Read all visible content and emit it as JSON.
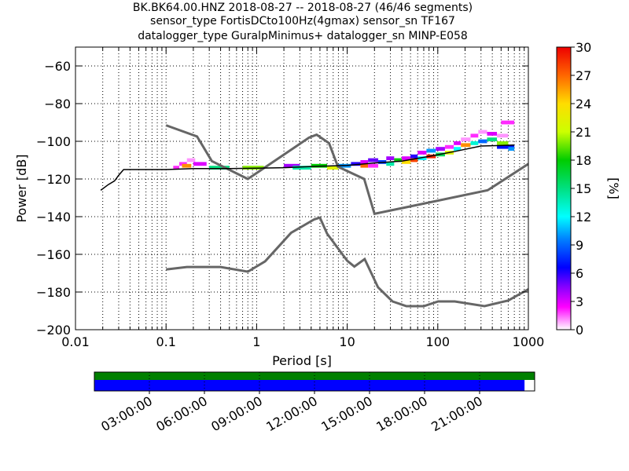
{
  "title": {
    "line1": "BK.BK64.00.HNZ   2018-08-27 -- 2018-08-27  (46/46 segments)",
    "line2": "sensor_type FortisDCto100Hz(4gmax) sensor_sn TF167",
    "line3": "datalogger_type GuralpMinimus+ datalogger_sn MINP-E058"
  },
  "chart_data": {
    "type": "heatmap",
    "xlabel": "Period [s]",
    "ylabel": "Power [dB]",
    "xscale": "log",
    "xlim": [
      0.01,
      1000
    ],
    "ylim": [
      -200,
      -50
    ],
    "x_ticks": [
      {
        "value": 0.01,
        "label": "0.01"
      },
      {
        "value": 0.1,
        "label": "0.1"
      },
      {
        "value": 1,
        "label": "1"
      },
      {
        "value": 10,
        "label": "10"
      },
      {
        "value": 100,
        "label": "100"
      },
      {
        "value": 1000,
        "label": "1000"
      }
    ],
    "y_ticks": [
      {
        "value": -60,
        "label": "−60"
      },
      {
        "value": -80,
        "label": "−80"
      },
      {
        "value": -100,
        "label": "−100"
      },
      {
        "value": -120,
        "label": "−120"
      },
      {
        "value": -140,
        "label": "−140"
      },
      {
        "value": -160,
        "label": "−160"
      },
      {
        "value": -180,
        "label": "−180"
      },
      {
        "value": -200,
        "label": "−200"
      }
    ],
    "grid": true,
    "colorbar": {
      "label": "[%]",
      "min": 0,
      "max": 30,
      "ticks": [
        {
          "value": 0,
          "label": "0"
        },
        {
          "value": 3,
          "label": "3"
        },
        {
          "value": 6,
          "label": "6"
        },
        {
          "value": 9,
          "label": "9"
        },
        {
          "value": 12,
          "label": "12"
        },
        {
          "value": 15,
          "label": "15"
        },
        {
          "value": 18,
          "label": "18"
        },
        {
          "value": 21,
          "label": "21"
        },
        {
          "value": 24,
          "label": "24"
        },
        {
          "value": 27,
          "label": "27"
        },
        {
          "value": 30,
          "label": "30"
        }
      ]
    },
    "high_noise_model": [
      [
        0.1,
        -91.5
      ],
      [
        0.22,
        -97.4
      ],
      [
        0.32,
        -110.5
      ],
      [
        0.8,
        -120
      ],
      [
        3.8,
        -98
      ],
      [
        4.6,
        -96.5
      ],
      [
        6.3,
        -101
      ],
      [
        7.9,
        -113.5
      ],
      [
        15.4,
        -120
      ],
      [
        20,
        -138.5
      ],
      [
        354.8,
        -126
      ],
      [
        1000,
        -112
      ]
    ],
    "low_noise_model": [
      [
        0.1,
        -168
      ],
      [
        0.17,
        -166.7
      ],
      [
        0.4,
        -166.7
      ],
      [
        0.8,
        -169.2
      ],
      [
        1.24,
        -163.7
      ],
      [
        2.4,
        -148.6
      ],
      [
        4.3,
        -141.5
      ],
      [
        5,
        -140.5
      ],
      [
        6,
        -149
      ],
      [
        10,
        -163.4
      ],
      [
        12,
        -166.5
      ],
      [
        15.6,
        -162.5
      ],
      [
        21.9,
        -177.5
      ],
      [
        31.6,
        -185
      ],
      [
        45,
        -187.5
      ],
      [
        70,
        -187.5
      ],
      [
        101,
        -185
      ],
      [
        154,
        -185
      ],
      [
        328,
        -187.5
      ],
      [
        600,
        -184.5
      ],
      [
        1000,
        -178.5
      ]
    ],
    "mode_line": [
      [
        0.019,
        -126
      ],
      [
        0.023,
        -123
      ],
      [
        0.027,
        -121
      ],
      [
        0.03,
        -118
      ],
      [
        0.034,
        -115
      ],
      [
        0.05,
        -115
      ],
      [
        0.1,
        -115
      ],
      [
        0.2,
        -114.5
      ],
      [
        0.5,
        -114.5
      ],
      [
        1,
        -114.3
      ],
      [
        2,
        -114
      ],
      [
        5,
        -113.2
      ],
      [
        10,
        -112.8
      ],
      [
        20,
        -111.5
      ],
      [
        40,
        -110.5
      ],
      [
        80,
        -108
      ],
      [
        150,
        -105.5
      ],
      [
        300,
        -102.5
      ],
      [
        700,
        -102
      ]
    ],
    "density_cells": [
      {
        "x": [
          0.12,
          0.14
        ],
        "y": -114,
        "pct": 2
      },
      {
        "x": [
          0.14,
          0.17
        ],
        "y": -112,
        "pct": 2
      },
      {
        "x": [
          0.17,
          0.21
        ],
        "y": -110,
        "pct": 1
      },
      {
        "x": [
          0.15,
          0.19
        ],
        "y": -113,
        "pct": 26
      },
      {
        "x": [
          0.2,
          0.28
        ],
        "y": -112,
        "pct": 3
      },
      {
        "x": [
          0.3,
          0.5
        ],
        "y": -114,
        "pct": 15
      },
      {
        "x": [
          0.7,
          1.2
        ],
        "y": -114,
        "pct": 20
      },
      {
        "x": [
          2,
          3
        ],
        "y": -113,
        "pct": 4
      },
      {
        "x": [
          2.5,
          4
        ],
        "y": -114,
        "pct": 14
      },
      {
        "x": [
          4,
          6
        ],
        "y": -113,
        "pct": 18
      },
      {
        "x": [
          6,
          8
        ],
        "y": -114,
        "pct": 22
      },
      {
        "x": [
          8,
          11
        ],
        "y": -113,
        "pct": 10
      },
      {
        "x": [
          11,
          14
        ],
        "y": -112,
        "pct": 6
      },
      {
        "x": [
          14,
          17
        ],
        "y": -111,
        "pct": 3
      },
      {
        "x": [
          14,
          17
        ],
        "y": -113,
        "pct": 27
      },
      {
        "x": [
          17,
          22
        ],
        "y": -110,
        "pct": 5
      },
      {
        "x": [
          17,
          22
        ],
        "y": -113,
        "pct": 2
      },
      {
        "x": [
          22,
          27
        ],
        "y": -111,
        "pct": 8
      },
      {
        "x": [
          27,
          33
        ],
        "y": -109,
        "pct": 4
      },
      {
        "x": [
          27,
          33
        ],
        "y": -112,
        "pct": 14
      },
      {
        "x": [
          33,
          40
        ],
        "y": -110,
        "pct": 18
      },
      {
        "x": [
          40,
          50
        ],
        "y": -109,
        "pct": 3
      },
      {
        "x": [
          40,
          50
        ],
        "y": -111,
        "pct": 24
      },
      {
        "x": [
          50,
          60
        ],
        "y": -108,
        "pct": 6
      },
      {
        "x": [
          50,
          60
        ],
        "y": -110,
        "pct": 28
      },
      {
        "x": [
          60,
          75
        ],
        "y": -106,
        "pct": 3
      },
      {
        "x": [
          60,
          75
        ],
        "y": -109,
        "pct": 12
      },
      {
        "x": [
          75,
          95
        ],
        "y": -105,
        "pct": 10
      },
      {
        "x": [
          75,
          95
        ],
        "y": -108,
        "pct": 29
      },
      {
        "x": [
          95,
          120
        ],
        "y": -104,
        "pct": 4
      },
      {
        "x": [
          95,
          120
        ],
        "y": -107,
        "pct": 16
      },
      {
        "x": [
          120,
          150
        ],
        "y": -103,
        "pct": 2
      },
      {
        "x": [
          120,
          150
        ],
        "y": -106,
        "pct": 22
      },
      {
        "x": [
          150,
          180
        ],
        "y": -101,
        "pct": 3
      },
      {
        "x": [
          150,
          180
        ],
        "y": -104,
        "pct": 12
      },
      {
        "x": [
          180,
          230
        ],
        "y": -99,
        "pct": 1
      },
      {
        "x": [
          180,
          230
        ],
        "y": -102,
        "pct": 26
      },
      {
        "x": [
          230,
          280
        ],
        "y": -97,
        "pct": 2
      },
      {
        "x": [
          230,
          280
        ],
        "y": -101,
        "pct": 13
      },
      {
        "x": [
          280,
          350
        ],
        "y": -95,
        "pct": 1
      },
      {
        "x": [
          280,
          350
        ],
        "y": -100,
        "pct": 9
      },
      {
        "x": [
          350,
          450
        ],
        "y": -96,
        "pct": 3
      },
      {
        "x": [
          350,
          450
        ],
        "y": -99,
        "pct": 15
      },
      {
        "x": [
          450,
          600
        ],
        "y": -97,
        "pct": 1
      },
      {
        "x": [
          450,
          600
        ],
        "y": -101,
        "pct": 20
      },
      {
        "x": [
          450,
          700
        ],
        "y": -103,
        "pct": 7
      },
      {
        "x": [
          500,
          700
        ],
        "y": -90,
        "pct": 2
      },
      {
        "x": [
          600,
          700
        ],
        "y": -104,
        "pct": 10
      }
    ]
  },
  "timeline": {
    "tick_labels": [
      "03:00:00",
      "06:00:00",
      "09:00:00",
      "12:00:00",
      "15:00:00",
      "18:00:00",
      "21:00:00"
    ],
    "tick_hours": [
      3,
      6,
      9,
      12,
      15,
      18,
      21
    ],
    "span_hours": 24,
    "data_coverage_fraction": 1.0,
    "psd_coverage_fraction": 0.977,
    "data_color": "#008000",
    "psd_color": "#0000ff"
  },
  "colors": {
    "noise_model": "#666666",
    "mode_line": "#000000",
    "grid": "#000000"
  }
}
